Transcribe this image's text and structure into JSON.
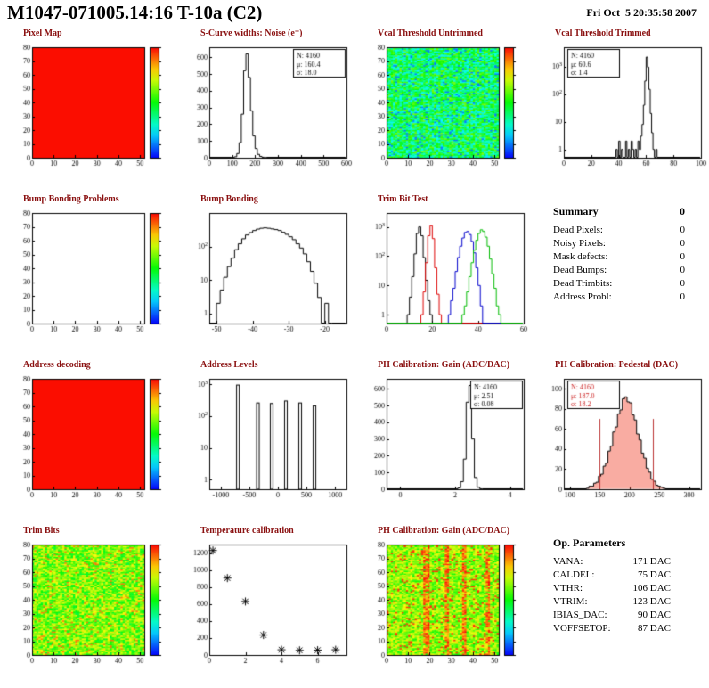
{
  "header": {
    "title": "M1047-071005.14:16 T-10a (C2)",
    "date": "Fri Oct  5 20:35:58 2007"
  },
  "summary": {
    "title": "Summary",
    "total": "0",
    "rows": [
      [
        "Dead Pixels:",
        "0"
      ],
      [
        "Noisy Pixels:",
        "0"
      ],
      [
        "Mask defects:",
        "0"
      ],
      [
        "Dead Bumps:",
        "0"
      ],
      [
        "Dead Trimbits:",
        "0"
      ],
      [
        "Address Probl:",
        "0"
      ]
    ]
  },
  "op_params": {
    "title": "Op. Parameters",
    "rows": [
      [
        "VANA:",
        "171 DAC"
      ],
      [
        "CALDEL:",
        "75 DAC"
      ],
      [
        "VTHR:",
        "106 DAC"
      ],
      [
        "VTRIM:",
        "123 DAC"
      ],
      [
        "IBIAS_DAC:",
        "90 DAC"
      ],
      [
        "VOFFSETOP:",
        "87 DAC"
      ]
    ]
  },
  "chart_data": [
    {
      "title": "Pixel Map",
      "type": "heatmap",
      "mode": "uniform",
      "color": "#fb0d00",
      "x_range": [
        0,
        52
      ],
      "y_range": [
        0,
        80
      ],
      "x_ticks": [
        0,
        10,
        20,
        30,
        40,
        50
      ],
      "y_ticks": [
        0,
        10,
        20,
        30,
        40,
        50,
        60,
        70,
        80
      ],
      "colorbar": true
    },
    {
      "title": "S-Curve widths: Noise (e⁻)",
      "type": "hist",
      "x_range": [
        0,
        600
      ],
      "x_ticks": [
        0,
        100,
        200,
        300,
        400,
        500,
        600
      ],
      "y_range": [
        0,
        660
      ],
      "y_ticks": [
        0,
        100,
        200,
        300,
        400,
        500,
        600
      ],
      "bin_start": 100,
      "bin_width": 10,
      "values": [
        2,
        6,
        25,
        90,
        260,
        520,
        620,
        480,
        280,
        130,
        55,
        20,
        8,
        3,
        1
      ],
      "stats": {
        "n": "N: 4160",
        "mu": "μ: 160.4",
        "sigma": "σ: 18.0"
      },
      "stats_pos": "tr"
    },
    {
      "title": "Vcal Threshold Untrimmed",
      "type": "heatmap",
      "mode": "noise",
      "seed": 7,
      "t_range": [
        0.22,
        0.62
      ],
      "outlier_frac": 0.06,
      "outlier_t": 0.12,
      "x_range": [
        0,
        52
      ],
      "y_range": [
        0,
        80
      ],
      "x_ticks": [
        0,
        10,
        20,
        30,
        40,
        50
      ],
      "y_ticks": [
        0,
        10,
        20,
        30,
        40,
        50,
        60,
        70,
        80
      ],
      "colorbar": true
    },
    {
      "title": "Vcal Threshold Trimmed",
      "type": "hist",
      "logy": true,
      "log_top": 5000,
      "x_range": [
        0,
        100
      ],
      "x_ticks": [
        0,
        20,
        40,
        60,
        80,
        100
      ],
      "y_ticks_log": [
        1,
        10,
        100,
        1000
      ],
      "bin_start": 38,
      "bin_width": 1,
      "values": [
        1,
        0,
        2,
        0,
        1,
        0,
        0,
        2,
        0,
        1,
        0,
        2,
        1,
        0,
        1,
        0,
        2,
        1,
        3,
        8,
        40,
        300,
        2200,
        950,
        150,
        20,
        4,
        1,
        0,
        1
      ],
      "stats": {
        "n": "N: 4160",
        "mu": "μ: 60.6",
        "sigma": "σ: 1.4"
      },
      "stats_pos": "tl"
    },
    {
      "title": "Bump Bonding Problems",
      "type": "heatmap",
      "mode": "empty",
      "x_range": [
        0,
        52
      ],
      "y_range": [
        0,
        80
      ],
      "x_ticks": [
        0,
        10,
        20,
        30,
        40,
        50
      ],
      "y_ticks": [
        0,
        10,
        20,
        30,
        40,
        50,
        60,
        70,
        80
      ],
      "colorbar": true
    },
    {
      "title": "Bump Bonding",
      "type": "hist",
      "logy": true,
      "log_top": 1000,
      "x_range": [
        -52,
        -14
      ],
      "x_ticks": [
        -50,
        -40,
        -30,
        -20
      ],
      "y_ticks_log": [
        1,
        10,
        100
      ],
      "bin_start": -50,
      "bin_width": 1,
      "values": [
        2,
        5,
        12,
        25,
        45,
        80,
        120,
        170,
        220,
        260,
        300,
        330,
        350,
        360,
        350,
        335,
        320,
        300,
        265,
        230,
        195,
        160,
        120,
        90,
        60,
        35,
        18,
        8,
        3,
        0,
        2,
        0
      ]
    },
    {
      "title": "Trim Bit Test",
      "type": "hist",
      "logy": true,
      "log_top": 3000,
      "x_range": [
        0,
        60
      ],
      "x_ticks": [
        0,
        20,
        40,
        60
      ],
      "y_ticks_log": [
        1,
        10,
        100,
        1000
      ],
      "series": [
        {
          "color": "#000000",
          "bin_start": 9,
          "bin_width": 1,
          "values": [
            1,
            4,
            20,
            120,
            600,
            1000,
            500,
            90,
            15,
            3,
            1
          ]
        },
        {
          "color": "#dd0000",
          "bin_start": 15,
          "bin_width": 1,
          "values": [
            1,
            6,
            60,
            500,
            1100,
            400,
            40,
            5,
            1
          ]
        },
        {
          "color": "#0000cc",
          "bin_start": 27,
          "bin_width": 1,
          "values": [
            1,
            3,
            8,
            30,
            90,
            220,
            420,
            650,
            700,
            550,
            320,
            130,
            40,
            10,
            2
          ]
        },
        {
          "color": "#00bb00",
          "bin_start": 33,
          "bin_width": 1,
          "values": [
            1,
            2,
            6,
            20,
            60,
            160,
            350,
            600,
            800,
            700,
            450,
            220,
            80,
            25,
            8,
            2,
            1
          ]
        }
      ]
    },
    {
      "title": "Address decoding",
      "type": "heatmap",
      "mode": "uniform",
      "color": "#fb0d00",
      "x_range": [
        0,
        52
      ],
      "y_range": [
        0,
        80
      ],
      "x_ticks": [
        0,
        10,
        20,
        30,
        40,
        50
      ],
      "y_ticks": [
        0,
        10,
        20,
        30,
        40,
        50,
        60,
        70,
        80
      ],
      "colorbar": true
    },
    {
      "title": "Address Levels",
      "type": "hist",
      "logy": true,
      "log_top": 1500,
      "x_range": [
        -1200,
        1200
      ],
      "x_ticks": [
        -1000,
        -500,
        0,
        500,
        1000
      ],
      "y_ticks_log": [
        1,
        10,
        100,
        1000
      ],
      "spikes": [
        [
          -700,
          950
        ],
        [
          -350,
          260
        ],
        [
          -110,
          250
        ],
        [
          140,
          300
        ],
        [
          390,
          260
        ],
        [
          640,
          210
        ]
      ]
    },
    {
      "title": "PH Calibration: Gain (ADC/DAC)",
      "type": "hist",
      "x_range": [
        -0.5,
        4.5
      ],
      "x_ticks": [
        0,
        2,
        4
      ],
      "y_range": [
        0,
        660
      ],
      "y_ticks": [
        0,
        100,
        200,
        300,
        400,
        500,
        600
      ],
      "bin_start": 2.0,
      "bin_width": 0.1,
      "values": [
        2,
        8,
        45,
        180,
        520,
        620,
        300,
        70,
        12,
        2
      ],
      "stats": {
        "n": "N: 4160",
        "mu": "μ: 2.51",
        "sigma": "σ: 0.08"
      },
      "stats_pos": "tr"
    },
    {
      "title": "PH Calibration: Pedestal (DAC)",
      "type": "hist",
      "x_range": [
        90,
        320
      ],
      "x_ticks": [
        100,
        150,
        200,
        250,
        300
      ],
      "y_range": [
        0,
        110
      ],
      "y_ticks": [
        0,
        20,
        40,
        60,
        80,
        100
      ],
      "bin_start": 128,
      "bin_width": 4,
      "values": [
        1,
        3,
        3,
        6,
        7,
        13,
        15,
        23,
        26,
        38,
        43,
        57,
        62,
        75,
        79,
        90,
        92,
        87,
        86,
        74,
        69,
        55,
        49,
        36,
        31,
        21,
        17,
        10,
        8,
        4,
        3,
        2,
        1
      ],
      "fill": "rgba(242,70,48,0.45)",
      "vlines": [
        {
          "x": 150,
          "h": 70,
          "color": "#bb3333"
        },
        {
          "x": 240,
          "h": 70,
          "color": "#bb3333"
        }
      ],
      "stats": {
        "n": "N: 4160",
        "mu": "μ: 187.0",
        "sigma": "σ: 18.2"
      },
      "stats_pos": "tl",
      "stats_color": "#cc2222"
    },
    {
      "title": "Trim Bits",
      "type": "heatmap",
      "mode": "noise",
      "seed": 13,
      "t_range": [
        0.45,
        0.78
      ],
      "outlier_frac": 0.05,
      "outlier_t": 0.88,
      "x_range": [
        0,
        52
      ],
      "y_range": [
        0,
        80
      ],
      "x_ticks": [
        0,
        10,
        20,
        30,
        40,
        50
      ],
      "y_ticks": [
        0,
        10,
        20,
        30,
        40,
        50,
        60,
        70,
        80
      ],
      "colorbar": true
    },
    {
      "title": "Temperature calibration",
      "type": "scatter",
      "x_range": [
        0,
        7.6
      ],
      "x_ticks": [
        0,
        2,
        4,
        6
      ],
      "y_range": [
        0,
        1300
      ],
      "y_ticks": [
        0,
        200,
        400,
        600,
        800,
        1000,
        1200
      ],
      "points": [
        [
          0.2,
          1230
        ],
        [
          1,
          905
        ],
        [
          2,
          630
        ],
        [
          3,
          235
        ],
        [
          4,
          62
        ],
        [
          5,
          55
        ],
        [
          6,
          57
        ],
        [
          7,
          62
        ]
      ]
    },
    {
      "title": "PH Calibration: Gain (ADC/DAC)",
      "type": "heatmap",
      "mode": "noise",
      "seed": 21,
      "t_range": [
        0.5,
        0.78
      ],
      "outlier_frac": 0.08,
      "outlier_t": 0.95,
      "hot_columns": [
        17,
        18,
        19,
        27,
        28,
        35,
        36,
        46,
        47
      ],
      "x_range": [
        0,
        52
      ],
      "y_range": [
        0,
        80
      ],
      "x_ticks": [
        0,
        10,
        20,
        30,
        40,
        50
      ],
      "y_ticks": [
        0,
        10,
        20,
        30,
        40,
        50,
        60,
        70,
        80
      ],
      "colorbar": true
    }
  ]
}
